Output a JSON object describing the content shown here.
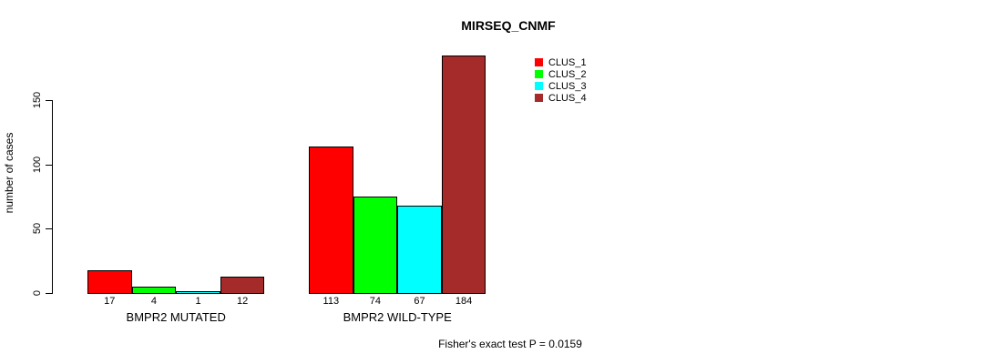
{
  "chart_data": {
    "type": "bar",
    "title": "MIRSEQ_CNMF",
    "ylabel": "number of cases",
    "xlabel": "",
    "yticks": [
      0,
      50,
      100,
      150
    ],
    "ylim": [
      0,
      184
    ],
    "grid": false,
    "legend_position": "top-right",
    "categories": [
      "BMPR2 MUTATED",
      "BMPR2 WILD-TYPE"
    ],
    "series": [
      {
        "name": "CLUS_1",
        "color": "#ff0000",
        "values": [
          17,
          113
        ]
      },
      {
        "name": "CLUS_2",
        "color": "#00ff00",
        "values": [
          4,
          74
        ]
      },
      {
        "name": "CLUS_3",
        "color": "#00ffff",
        "values": [
          1,
          67
        ]
      },
      {
        "name": "CLUS_4",
        "color": "#a52a2a",
        "values": [
          12,
          184
        ]
      }
    ],
    "bar_value_labels": [
      [
        "17",
        "4",
        "1",
        "12"
      ],
      [
        "113",
        "74",
        "67",
        "184"
      ]
    ],
    "annotation": "Fisher's exact test P = 0.0159"
  }
}
